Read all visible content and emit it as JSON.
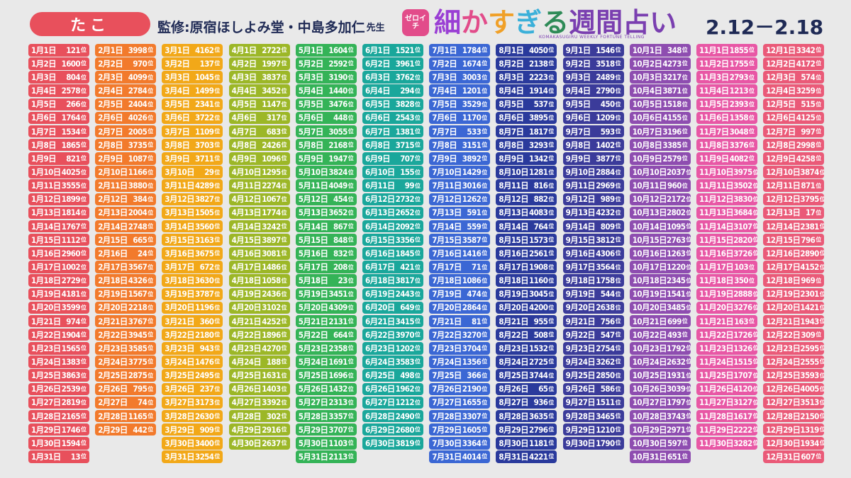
{
  "header": {
    "badge": "たこ",
    "supervisor": "監修:原宿ほしよみ堂・中島多加仁",
    "supervisor_suffix": "先生",
    "logo_mark": "ゼロイチ",
    "logo_title": [
      "細",
      "か",
      "す",
      "ぎ",
      "る",
      "週間占い"
    ],
    "logo_subtitle": "KOMAKASUGIRU WEEKLY FORTUNE TELLING",
    "date_range": "2.12－2.18"
  },
  "rank_suffix": "位",
  "month_colors": [
    "#e8505c",
    "#f27a2c",
    "#f2a818",
    "#9cb727",
    "#34b357",
    "#1aa79b",
    "#3b67d4",
    "#2a3a9c",
    "#3b3b9a",
    "#8e4db0",
    "#e857a5",
    "#ea5a78"
  ],
  "months": [
    {
      "name": "1月",
      "days": [
        121,
        1600,
        804,
        2578,
        266,
        1764,
        1534,
        1865,
        821,
        4025,
        3555,
        1899,
        1814,
        1767,
        1112,
        2960,
        1002,
        2729,
        4181,
        3599,
        974,
        1904,
        1565,
        1383,
        3863,
        2539,
        2819,
        2165,
        1746,
        1594,
        13
      ]
    },
    {
      "name": "2月",
      "days": [
        3998,
        970,
        4099,
        2784,
        2404,
        4026,
        2005,
        3735,
        1087,
        1166,
        3880,
        384,
        2004,
        2748,
        665,
        24,
        3567,
        4326,
        1567,
        2218,
        3767,
        3945,
        3585,
        3775,
        2875,
        795,
        74,
        1165,
        442
      ]
    },
    {
      "name": "3月",
      "days": [
        4162,
        137,
        1045,
        1499,
        2341,
        3722,
        1109,
        3703,
        3711,
        29,
        4289,
        3827,
        1505,
        3560,
        3163,
        3675,
        672,
        3630,
        3787,
        1196,
        360,
        2180,
        943,
        1476,
        2495,
        237,
        3173,
        2630,
        909,
        3400,
        3254
      ]
    },
    {
      "name": "4月",
      "days": [
        2722,
        1997,
        3837,
        3452,
        1147,
        317,
        683,
        2426,
        1096,
        1295,
        2274,
        1067,
        1774,
        3242,
        3897,
        3081,
        1486,
        1058,
        2436,
        3102,
        4252,
        1896,
        4270,
        188,
        1631,
        1403,
        3392,
        302,
        2916,
        2637
      ]
    },
    {
      "name": "5月",
      "days": [
        1604,
        2592,
        3190,
        1440,
        3476,
        448,
        3055,
        2168,
        1947,
        3824,
        4049,
        454,
        3652,
        867,
        848,
        832,
        208,
        23,
        3451,
        4309,
        2131,
        664,
        2358,
        1691,
        1696,
        1432,
        2313,
        3357,
        3707,
        1103,
        2113
      ]
    },
    {
      "name": "6月",
      "days": [
        1521,
        3961,
        3762,
        294,
        3828,
        2543,
        1381,
        3715,
        707,
        155,
        99,
        2732,
        2652,
        2092,
        3356,
        1845,
        421,
        3817,
        2443,
        649,
        3415,
        3970,
        1202,
        3583,
        498,
        1962,
        1212,
        2490,
        2680,
        3819
      ]
    },
    {
      "name": "7月",
      "days": [
        1784,
        1674,
        3003,
        1201,
        3529,
        1170,
        533,
        3151,
        3892,
        1429,
        3016,
        1262,
        591,
        559,
        3587,
        1416,
        71,
        1086,
        474,
        2864,
        81,
        3270,
        3704,
        1356,
        366,
        2190,
        1655,
        3307,
        1605,
        3364,
        4014
      ]
    },
    {
      "name": "8月",
      "days": [
        4050,
        2138,
        2223,
        1914,
        537,
        3895,
        1817,
        3293,
        1342,
        1281,
        816,
        882,
        4083,
        764,
        1573,
        2561,
        1908,
        1160,
        3045,
        4200,
        955,
        508,
        1532,
        2725,
        3744,
        65,
        936,
        3635,
        2796,
        1181,
        4221
      ]
    },
    {
      "name": "9月",
      "days": [
        1546,
        3518,
        2489,
        2790,
        450,
        1209,
        593,
        1402,
        3877,
        2884,
        2969,
        989,
        4232,
        809,
        3812,
        4306,
        3564,
        1758,
        544,
        2638,
        756,
        547,
        2754,
        3262,
        2850,
        586,
        1511,
        3465,
        1210,
        1790
      ]
    },
    {
      "name": "10月",
      "days": [
        348,
        4273,
        3217,
        3871,
        1518,
        4155,
        3196,
        3385,
        2579,
        2037,
        960,
        2172,
        2802,
        1095,
        2763,
        1263,
        1220,
        2345,
        1541,
        3485,
        699,
        493,
        1792,
        2632,
        1931,
        3039,
        1797,
        3743,
        2971,
        597,
        651
      ]
    },
    {
      "name": "11月",
      "days": [
        1855,
        1755,
        2793,
        1213,
        2393,
        1358,
        3048,
        3376,
        4082,
        3975,
        3502,
        3830,
        3684,
        3107,
        2820,
        3726,
        103,
        350,
        2888,
        3276,
        163,
        1726,
        1326,
        1515,
        1707,
        4120,
        3127,
        1617,
        2222,
        3282
      ]
    },
    {
      "name": "12月",
      "days": [
        3342,
        4172,
        574,
        3259,
        515,
        4125,
        997,
        2998,
        4258,
        3874,
        871,
        3795,
        17,
        2381,
        796,
        2890,
        4152,
        969,
        2301,
        1421,
        1943,
        309,
        2595,
        2555,
        3593,
        4005,
        3513,
        2150,
        1319,
        1934,
        607
      ]
    }
  ]
}
